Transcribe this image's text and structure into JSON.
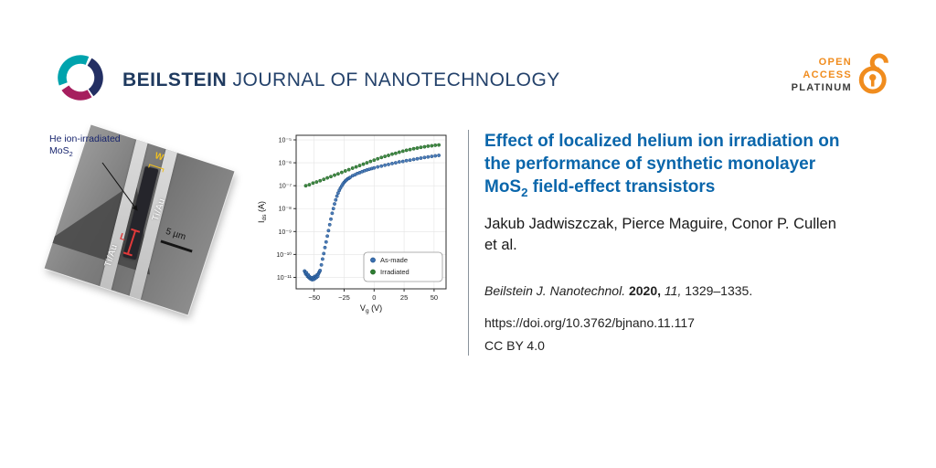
{
  "header": {
    "brand_bold": "BEILSTEIN",
    "brand_rest": " JOURNAL OF NANOTECHNOLOGY",
    "open_access_badge": {
      "line1": "OPEN",
      "line2": "ACCESS",
      "line3": "PLATINUM"
    }
  },
  "colors": {
    "brand_blue": "#1f3a5f",
    "title_blue": "#0a66ab",
    "accent_orange": "#f08c1e",
    "platinum_gray": "#3c3c3b",
    "logo_teal": "#00a3ad",
    "logo_navy": "#232f63",
    "logo_magenta": "#a61e5e",
    "asmade_blue": "#3a6fb0",
    "irradiated_green": "#2e7d32",
    "annotation_red": "#e03a3a",
    "annotation_yellow": "#f0c020",
    "he_label_navy": "#17246d"
  },
  "micrograph": {
    "annotation_line1": "He ion-irradiated",
    "annotation_mo": "MoS",
    "annotation_sub": "2",
    "electrode_label": "Ti/Au",
    "width_label": "W",
    "length_label": "L",
    "scale_label": "5 µm"
  },
  "chart_data": {
    "type": "scatter",
    "title": "",
    "xlabel": {
      "main": "V",
      "sub": "g",
      "rest": " (V)"
    },
    "ylabel": {
      "main": "I",
      "sub": "ds",
      "rest": " (A)"
    },
    "grid": true,
    "legend_position": "bottom-right",
    "x_axis": {
      "min": -65,
      "max": 60,
      "ticks": [
        {
          "v": -50,
          "label": "−50"
        },
        {
          "v": -25,
          "label": "−25"
        },
        {
          "v": 0,
          "label": "0"
        },
        {
          "v": 25,
          "label": "25"
        },
        {
          "v": 50,
          "label": "50"
        }
      ]
    },
    "y_axis": {
      "scale": "log",
      "top_exp": -4.8,
      "bottom_exp": -11.5,
      "ticks": [
        {
          "exp": -5,
          "label": "10⁻⁵"
        },
        {
          "exp": -6,
          "label": "10⁻⁶"
        },
        {
          "exp": -7,
          "label": "10⁻⁷"
        },
        {
          "exp": -8,
          "label": "10⁻⁸"
        },
        {
          "exp": -9,
          "label": "10⁻⁹"
        },
        {
          "exp": -10,
          "label": "10⁻¹⁰"
        },
        {
          "exp": -11,
          "label": "10⁻¹¹"
        }
      ]
    },
    "series": [
      {
        "name": "As-made",
        "color": "#3a6fb0",
        "edge": "#1f4e86",
        "points": [
          [
            -58,
            1.9e-11
          ],
          [
            -57.5,
            1.7e-11
          ],
          [
            -57,
            1.4e-11
          ],
          [
            -56.5,
            1.6e-11
          ],
          [
            -56,
            1.3e-11
          ],
          [
            -55.5,
            1.1e-11
          ],
          [
            -55,
            1.3e-11
          ],
          [
            -54.5,
            1e-11
          ],
          [
            -54,
            1.1e-11
          ],
          [
            -53.5,
            8.9e-12
          ],
          [
            -53,
            1e-11
          ],
          [
            -52.5,
            8.3e-12
          ],
          [
            -52,
            9.5e-12
          ],
          [
            -51.5,
            7.9e-12
          ],
          [
            -51,
            8.9e-12
          ],
          [
            -50.5,
            1e-11
          ],
          [
            -50,
            8.3e-12
          ],
          [
            -49.5,
            1.1e-11
          ],
          [
            -49,
            9.3e-12
          ],
          [
            -48.5,
            1.1e-11
          ],
          [
            -48,
            1e-11
          ],
          [
            -47.5,
            1.3e-11
          ],
          [
            -47,
            1.1e-11
          ],
          [
            -46.5,
            1.4e-11
          ],
          [
            -46,
            1.6e-11
          ],
          [
            -45.5,
            1.8e-11
          ],
          [
            -45,
            2e-11
          ],
          [
            -44,
            3.5e-11
          ],
          [
            -43,
            6.3e-11
          ],
          [
            -42,
            1.1e-10
          ],
          [
            -41,
            2e-10
          ],
          [
            -40,
            3.5e-10
          ],
          [
            -39,
            6.3e-10
          ],
          [
            -38,
            1.1e-09
          ],
          [
            -37,
            2e-09
          ],
          [
            -36,
            3.5e-09
          ],
          [
            -35,
            6.3e-09
          ],
          [
            -34,
            1e-08
          ],
          [
            -33,
            1.6e-08
          ],
          [
            -32,
            2.4e-08
          ],
          [
            -31,
            3.5e-08
          ],
          [
            -30,
            4.8e-08
          ],
          [
            -29,
            6.3e-08
          ],
          [
            -28,
            7.9e-08
          ],
          [
            -27,
            9.8e-08
          ],
          [
            -26,
            1.2e-07
          ],
          [
            -25,
            1.4e-07
          ],
          [
            -24,
            1.6e-07
          ],
          [
            -23,
            1.8e-07
          ],
          [
            -22,
            2e-07
          ],
          [
            -21,
            2.1e-07
          ],
          [
            -20,
            2.3e-07
          ],
          [
            -18,
            2.7e-07
          ],
          [
            -16,
            3e-07
          ],
          [
            -14,
            3.4e-07
          ],
          [
            -12,
            3.7e-07
          ],
          [
            -10,
            4.1e-07
          ],
          [
            -8,
            4.5e-07
          ],
          [
            -6,
            4.9e-07
          ],
          [
            -4,
            5.2e-07
          ],
          [
            -2,
            5.6e-07
          ],
          [
            0,
            6e-07
          ],
          [
            3,
            6.6e-07
          ],
          [
            6,
            7.2e-07
          ],
          [
            9,
            7.9e-07
          ],
          [
            12,
            8.5e-07
          ],
          [
            15,
            9.3e-07
          ],
          [
            18,
            1e-06
          ],
          [
            21,
            1.1e-06
          ],
          [
            24,
            1.15e-06
          ],
          [
            27,
            1.25e-06
          ],
          [
            30,
            1.3e-06
          ],
          [
            33,
            1.4e-06
          ],
          [
            36,
            1.5e-06
          ],
          [
            39,
            1.6e-06
          ],
          [
            42,
            1.7e-06
          ],
          [
            45,
            1.8e-06
          ],
          [
            48,
            1.9e-06
          ],
          [
            51,
            2e-06
          ],
          [
            54,
            2.1e-06
          ]
        ]
      },
      {
        "name": "Irradiated",
        "color": "#2e7d32",
        "edge": "#1b5e20",
        "points": [
          [
            -57,
            1e-07
          ],
          [
            -54,
            1.1e-07
          ],
          [
            -51,
            1.3e-07
          ],
          [
            -48,
            1.45e-07
          ],
          [
            -45,
            1.65e-07
          ],
          [
            -42,
            1.9e-07
          ],
          [
            -39,
            2.2e-07
          ],
          [
            -36,
            2.5e-07
          ],
          [
            -33,
            2.9e-07
          ],
          [
            -30,
            3.3e-07
          ],
          [
            -27,
            3.8e-07
          ],
          [
            -24,
            4.4e-07
          ],
          [
            -21,
            5e-07
          ],
          [
            -18,
            5.8e-07
          ],
          [
            -15,
            6.6e-07
          ],
          [
            -12,
            7.6e-07
          ],
          [
            -9,
            8.7e-07
          ],
          [
            -6,
            1e-06
          ],
          [
            -3,
            1.15e-06
          ],
          [
            0,
            1.3e-06
          ],
          [
            3,
            1.5e-06
          ],
          [
            6,
            1.7e-06
          ],
          [
            9,
            1.9e-06
          ],
          [
            12,
            2.1e-06
          ],
          [
            15,
            2.4e-06
          ],
          [
            18,
            2.6e-06
          ],
          [
            21,
            2.9e-06
          ],
          [
            24,
            3.2e-06
          ],
          [
            27,
            3.5e-06
          ],
          [
            30,
            3.8e-06
          ],
          [
            33,
            4.1e-06
          ],
          [
            36,
            4.4e-06
          ],
          [
            39,
            4.7e-06
          ],
          [
            42,
            5e-06
          ],
          [
            45,
            5.3e-06
          ],
          [
            48,
            5.5e-06
          ],
          [
            51,
            5.8e-06
          ],
          [
            54,
            6e-06
          ]
        ]
      }
    ]
  },
  "article": {
    "title_line1": "Effect of localized helium ion irradiation on",
    "title_line2": "the performance of synthetic monolayer",
    "title_line3_pre": "MoS",
    "title_line3_sub": "2",
    "title_line3_post": " field-effect transistors",
    "authors_line1": "Jakub Jadwiszczak, Pierce Maguire, Conor P. Cullen",
    "authors_line2": "et al.",
    "citation": {
      "journal": "Beilstein J. Nanotechnol.",
      "year": "2020,",
      "volume": "11,",
      "pages": "1329–1335."
    },
    "doi": "https://doi.org/10.3762/bjnano.11.117",
    "license": "CC BY 4.0"
  }
}
